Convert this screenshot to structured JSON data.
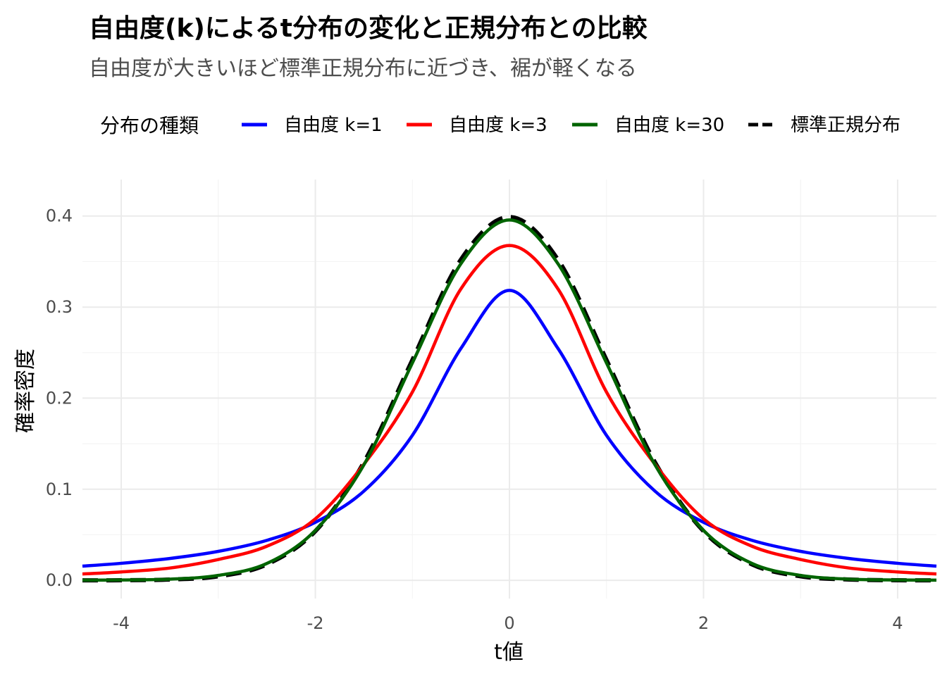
{
  "chart_data": {
    "type": "line",
    "title": "自由度(k)によるt分布の変化と正規分布との比較",
    "subtitle": "自由度が大きいほど標準正規分布に近づき、裾が軽くなる",
    "xlabel": "t値",
    "ylabel": "確率密度",
    "legend": {
      "title": "分布の種類",
      "position": "top"
    },
    "xlim": [
      -4.4,
      4.4
    ],
    "ylim": [
      -0.02,
      0.44
    ],
    "x_ticks": [
      -4,
      -2,
      0,
      2,
      4
    ],
    "x_tick_labels": [
      "-4",
      "-2",
      "0",
      "2",
      "4"
    ],
    "y_ticks": [
      0.0,
      0.1,
      0.2,
      0.3,
      0.4
    ],
    "y_tick_labels": [
      "0.0",
      "0.1",
      "0.2",
      "0.3",
      "0.4"
    ],
    "grid": true,
    "x": [
      -4.4,
      -4.0,
      -3.5,
      -3.0,
      -2.5,
      -2.0,
      -1.5,
      -1.0,
      -0.5,
      0.0,
      0.5,
      1.0,
      1.5,
      2.0,
      2.5,
      3.0,
      3.5,
      4.0,
      4.4
    ],
    "series": [
      {
        "name": "自由度 k=1",
        "color": "#0000ff",
        "dash": "solid",
        "values": [
          0.0156,
          0.0187,
          0.024,
          0.0318,
          0.0439,
          0.0637,
          0.0979,
          0.1592,
          0.2546,
          0.3183,
          0.2546,
          0.1592,
          0.0979,
          0.0637,
          0.0439,
          0.0318,
          0.024,
          0.0187,
          0.0156
        ]
      },
      {
        "name": "自由度 k=3",
        "color": "#ff0000",
        "dash": "solid",
        "values": [
          0.007,
          0.0092,
          0.0135,
          0.0229,
          0.0374,
          0.0675,
          0.1274,
          0.2067,
          0.32,
          0.3676,
          0.32,
          0.2067,
          0.1274,
          0.0675,
          0.0374,
          0.0229,
          0.0135,
          0.0092,
          0.007
        ]
      },
      {
        "name": "自由度 k=30",
        "color": "#006400",
        "dash": "solid",
        "values": [
          0.0002,
          0.0004,
          0.0013,
          0.0054,
          0.0185,
          0.0548,
          0.1268,
          0.2387,
          0.3476,
          0.3956,
          0.3476,
          0.2387,
          0.1268,
          0.0548,
          0.0185,
          0.0054,
          0.0013,
          0.0004,
          0.0002
        ]
      },
      {
        "name": "標準正規分布",
        "color": "#000000",
        "dash": "dashed",
        "values": [
          0.0,
          0.0001,
          0.0009,
          0.0044,
          0.0175,
          0.054,
          0.1295,
          0.242,
          0.3521,
          0.3989,
          0.3521,
          0.242,
          0.1295,
          0.054,
          0.0175,
          0.0044,
          0.0009,
          0.0001,
          0.0
        ]
      }
    ]
  }
}
